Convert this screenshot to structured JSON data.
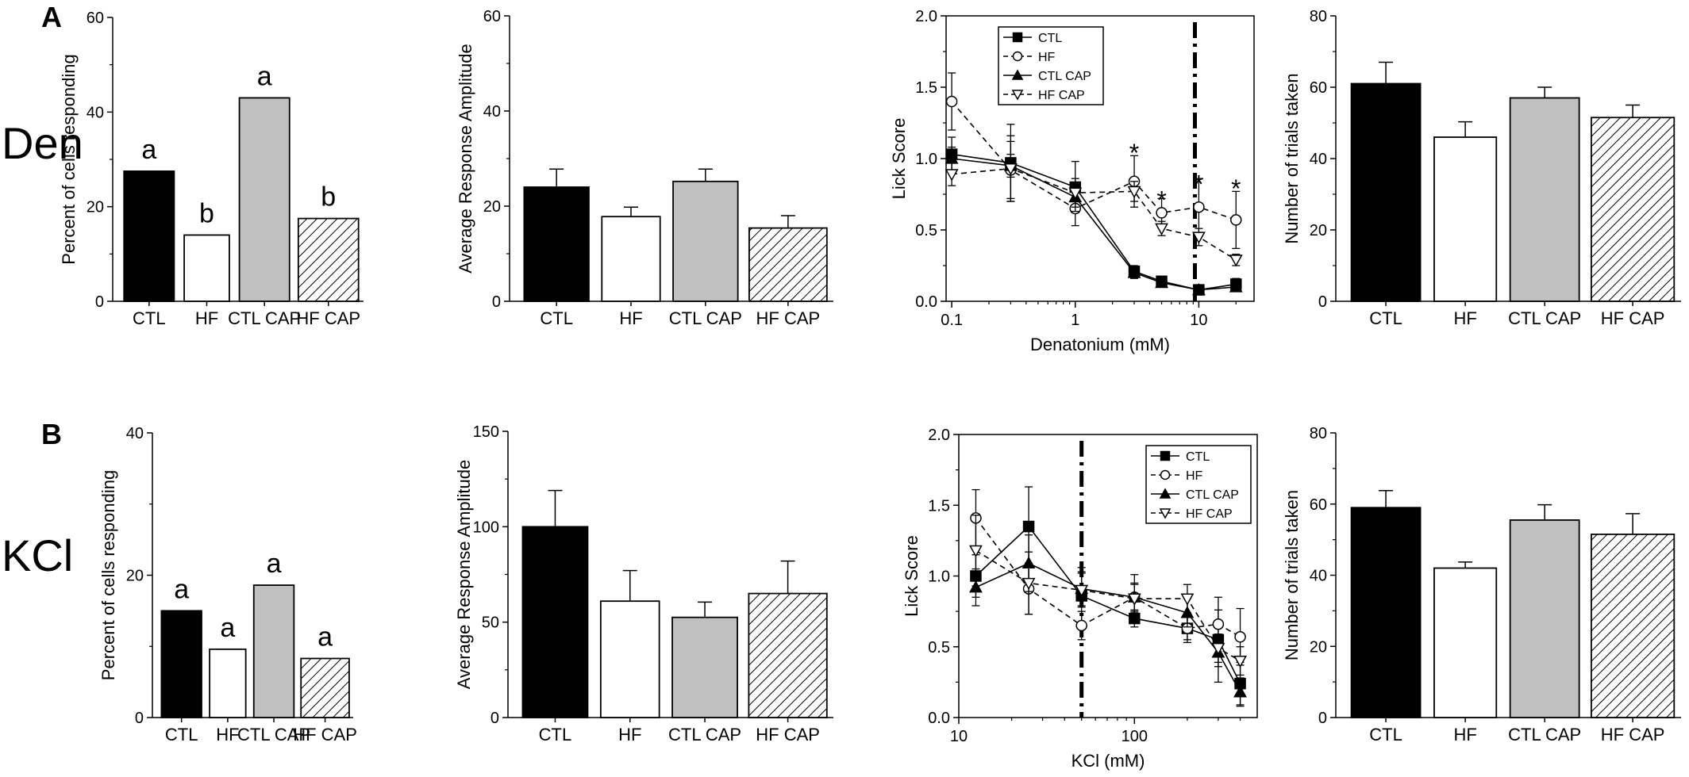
{
  "panels": [
    {
      "letter": "A",
      "row_label": "Den"
    },
    {
      "letter": "B",
      "row_label": "KCl"
    }
  ],
  "colors": {
    "CTL": "#000000",
    "HF": "#ffffff",
    "CTL CAP": "#c0c0c0",
    "HF CAP": "hatch"
  },
  "chart_data": [
    {
      "id": "a1",
      "type": "bar",
      "panel": "A",
      "categories": [
        "CTL",
        "HF",
        "CTL CAP",
        "HF CAP"
      ],
      "values": [
        27.5,
        14,
        43,
        17.5
      ],
      "errors": [
        0,
        0,
        0,
        0
      ],
      "letters": [
        "a",
        "b",
        "a",
        "b"
      ],
      "ylabel": "Percent of cells responding",
      "ylim": [
        0,
        60
      ],
      "yticks": [
        0,
        20,
        40,
        60
      ]
    },
    {
      "id": "a2",
      "type": "bar",
      "panel": "A",
      "categories": [
        "CTL",
        "HF",
        "CTL CAP",
        "HF CAP"
      ],
      "values": [
        24,
        17.8,
        25.2,
        15.4
      ],
      "errors": [
        3.8,
        2,
        2.6,
        2.6
      ],
      "letters": [],
      "ylabel": "Average Response Amplitude",
      "ylim": [
        0,
        60
      ],
      "yticks": [
        0,
        20,
        40,
        60
      ]
    },
    {
      "id": "a3",
      "type": "line",
      "panel": "A",
      "xscale": "log",
      "xlim": [
        0.09,
        28
      ],
      "ylim": [
        0,
        2
      ],
      "xticks": [
        {
          "v": 0.1,
          "label": "0.1"
        },
        {
          "v": 1,
          "label": "1"
        },
        {
          "v": 10,
          "label": "10"
        }
      ],
      "yticks": [
        {
          "v": 0,
          "label": "0.0"
        },
        {
          "v": 0.5,
          "label": "0.5"
        },
        {
          "v": 1,
          "label": "1.0"
        },
        {
          "v": 1.5,
          "label": "1.5"
        },
        {
          "v": 2,
          "label": "2.0"
        }
      ],
      "xlabel": "Denatonium (mM)",
      "ylabel": "Lick Score",
      "vline": 9.3,
      "x": [
        0.1,
        0.3,
        1,
        3,
        5,
        10,
        20
      ],
      "series": [
        {
          "name": "CTL",
          "marker": "square",
          "dashed": false,
          "values": [
            1.03,
            0.97,
            0.8,
            0.21,
            0.14,
            0.08,
            0.12
          ],
          "errors": [
            0.12,
            0.27,
            0.18,
            0.04,
            0.03,
            0.03,
            0.04
          ]
        },
        {
          "name": "HF",
          "marker": "circle",
          "dashed": true,
          "values": [
            1.4,
            0.92,
            0.65,
            0.84,
            0.62,
            0.66,
            0.57
          ],
          "errors": [
            0.2,
            0.2,
            0.12,
            0.18,
            0.1,
            0.2,
            0.2
          ]
        },
        {
          "name": "CTL CAP",
          "marker": "triangle",
          "dashed": false,
          "values": [
            1.0,
            0.95,
            0.73,
            0.2,
            0.13,
            0.08,
            0.1
          ],
          "errors": [
            0.08,
            0.08,
            0.1,
            0.04,
            0.03,
            0.03,
            0.03
          ]
        },
        {
          "name": "HF CAP",
          "marker": "triangle-down",
          "dashed": true,
          "values": [
            0.89,
            0.93,
            0.76,
            0.77,
            0.51,
            0.45,
            0.29
          ],
          "errors": [
            0.08,
            0.23,
            0.1,
            0.07,
            0.05,
            0.06,
            0.04
          ]
        }
      ],
      "stars": [
        {
          "x": 3,
          "y": 1.1
        },
        {
          "x": 5,
          "y": 0.77
        },
        {
          "x": 10,
          "y": 0.88
        },
        {
          "x": 20,
          "y": 0.85
        }
      ],
      "legend": {
        "position": "top-left"
      }
    },
    {
      "id": "a4",
      "type": "bar",
      "panel": "A",
      "categories": [
        "CTL",
        "HF",
        "CTL CAP",
        "HF CAP"
      ],
      "values": [
        61,
        46,
        57,
        51.5
      ],
      "errors": [
        6,
        4.3,
        3,
        3.5
      ],
      "letters": [],
      "ylabel": "Number of trials taken",
      "ylim": [
        0,
        80
      ],
      "yticks": [
        0,
        20,
        40,
        60,
        80
      ]
    },
    {
      "id": "b1",
      "type": "bar",
      "panel": "B",
      "categories": [
        "CTL",
        "HF",
        "CTL CAP",
        "HF CAP"
      ],
      "values": [
        15,
        9.6,
        18.6,
        8.3
      ],
      "errors": [
        0,
        0,
        0,
        0
      ],
      "letters": [
        "a",
        "a",
        "a",
        "a"
      ],
      "ylabel": "Percent of cells responding",
      "ylim": [
        0,
        40
      ],
      "yticks": [
        0,
        20,
        40
      ]
    },
    {
      "id": "b2",
      "type": "bar",
      "panel": "B",
      "categories": [
        "CTL",
        "HF",
        "CTL CAP",
        "HF CAP"
      ],
      "values": [
        100,
        61,
        52.5,
        65
      ],
      "errors": [
        19,
        16,
        8,
        17
      ],
      "letters": [],
      "ylabel": "Average Response Amplitude",
      "ylim": [
        0,
        150
      ],
      "yticks": [
        0,
        50,
        100,
        150
      ]
    },
    {
      "id": "b3",
      "type": "line",
      "panel": "B",
      "xscale": "log",
      "xlim": [
        10,
        500
      ],
      "ylim": [
        0,
        2
      ],
      "xticks": [
        {
          "v": 10,
          "label": "10"
        },
        {
          "v": 100,
          "label": "100"
        }
      ],
      "yticks": [
        {
          "v": 0,
          "label": "0.0"
        },
        {
          "v": 0.5,
          "label": "0.5"
        },
        {
          "v": 1,
          "label": "1.0"
        },
        {
          "v": 1.5,
          "label": "1.5"
        },
        {
          "v": 2,
          "label": "2.0"
        }
      ],
      "xlabel": "KCl (mM)",
      "ylabel": "Lick Score",
      "vline": 50,
      "x": [
        12.5,
        25,
        50,
        100,
        200,
        300,
        400
      ],
      "series": [
        {
          "name": "CTL",
          "marker": "square",
          "dashed": false,
          "values": [
            1.0,
            1.35,
            0.86,
            0.7,
            0.63,
            0.55,
            0.24
          ],
          "errors": [
            0.15,
            0.28,
            0.2,
            0.06,
            0.08,
            0.3,
            0.15
          ]
        },
        {
          "name": "HF",
          "marker": "circle",
          "dashed": true,
          "values": [
            1.41,
            0.91,
            0.65,
            0.85,
            0.63,
            0.66,
            0.57
          ],
          "errors": [
            0.2,
            0.18,
            0.1,
            0.16,
            0.1,
            0.1,
            0.2
          ]
        },
        {
          "name": "CTL CAP",
          "marker": "triangle",
          "dashed": false,
          "values": [
            0.92,
            1.09,
            0.91,
            0.85,
            0.74,
            0.46,
            0.18
          ],
          "errors": [
            0.13,
            0.2,
            0.12,
            0.1,
            0.1,
            0.1,
            0.1
          ]
        },
        {
          "name": "HF CAP",
          "marker": "triangle-down",
          "dashed": true,
          "values": [
            1.18,
            0.95,
            0.9,
            0.84,
            0.84,
            0.49,
            0.4
          ],
          "errors": [
            0.25,
            0.22,
            0.12,
            0.1,
            0.1,
            0.1,
            0.1
          ]
        }
      ],
      "stars": [],
      "legend": {
        "position": "top-right"
      }
    },
    {
      "id": "b4",
      "type": "bar",
      "panel": "B",
      "categories": [
        "CTL",
        "HF",
        "CTL CAP",
        "HF CAP"
      ],
      "values": [
        59,
        42,
        55.5,
        51.5
      ],
      "errors": [
        4.8,
        1.7,
        4.3,
        5.8
      ],
      "letters": [],
      "ylabel": "Number of trials taken",
      "ylim": [
        0,
        80
      ],
      "yticks": [
        0,
        20,
        40,
        60,
        80
      ]
    }
  ]
}
